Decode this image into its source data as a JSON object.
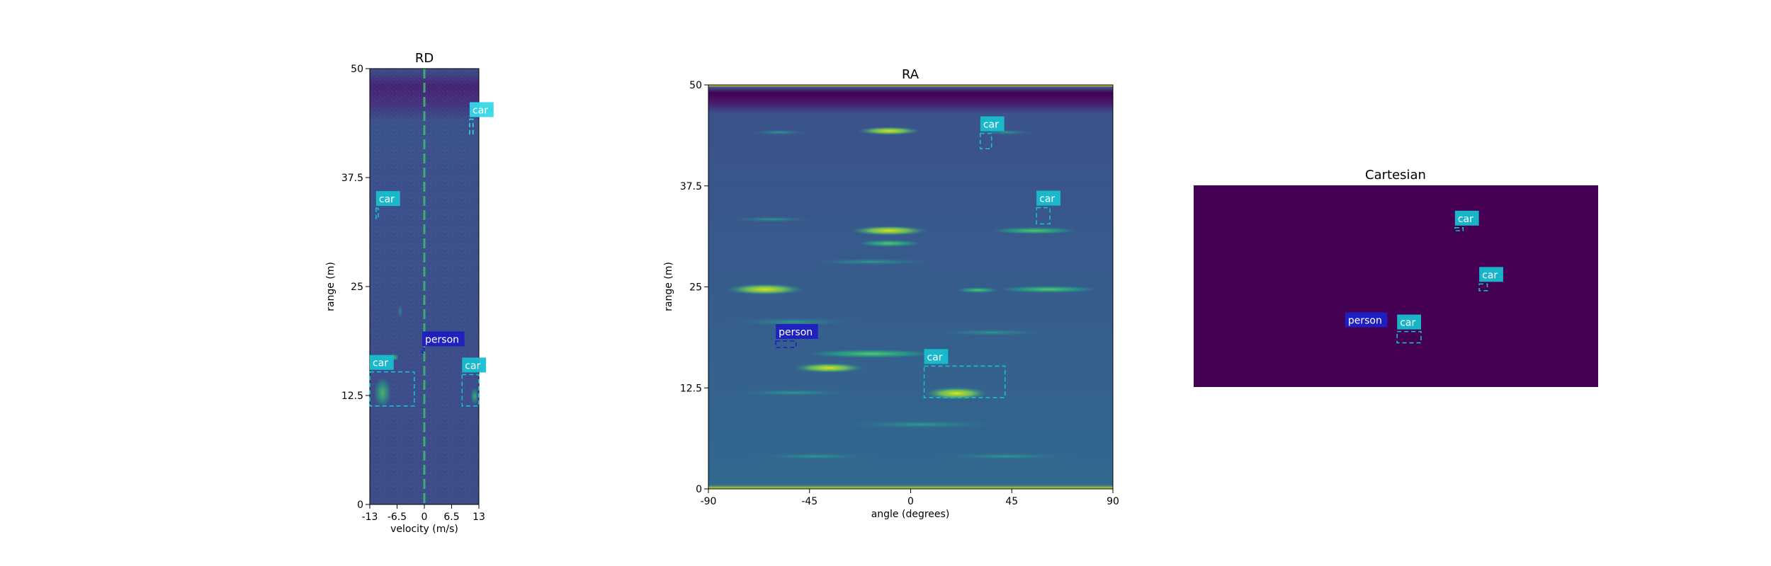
{
  "chart_data": [
    {
      "id": "rd",
      "type": "heatmap",
      "title": "RD",
      "xlabel": "velocity (m/s)",
      "ylabel": "range (m)",
      "xlim": [
        -13,
        13
      ],
      "ylim": [
        0,
        50
      ],
      "xticks": [
        -13,
        -6.5,
        0,
        6.5,
        13
      ],
      "xtick_labels": [
        "-13",
        "-6.5",
        "0",
        "6.5",
        "13"
      ],
      "yticks": [
        0,
        12.5,
        25,
        37.5,
        50
      ],
      "ytick_labels": [
        "0",
        "12.5",
        "25",
        "37.5",
        "50"
      ],
      "colormap": "viridis",
      "grid": false,
      "detections": [
        {
          "label": "car",
          "color": "#17becf",
          "x0": -11.5,
          "x1": -11.0,
          "y0": 32.8,
          "y1": 34.0
        },
        {
          "label": "car",
          "color": "#35d7e8",
          "x0": 10.8,
          "x1": 11.6,
          "y0": 42.5,
          "y1": 44.2
        },
        {
          "label": "person",
          "color": "#1f1fbf",
          "x0": -0.5,
          "x1": -0.1,
          "y0": 17.4,
          "y1": 17.9
        },
        {
          "label": "car",
          "color": "#17becf",
          "x0": -13.0,
          "x1": -2.4,
          "y0": 11.3,
          "y1": 15.2
        },
        {
          "label": "car",
          "color": "#17becf",
          "x0": 9.0,
          "x1": 13.0,
          "y0": 11.3,
          "y1": 14.9
        }
      ]
    },
    {
      "id": "ra",
      "type": "heatmap",
      "title": "RA",
      "xlabel": "angle (degrees)",
      "ylabel": "range (m)",
      "xlim": [
        -90,
        90
      ],
      "ylim": [
        0,
        50
      ],
      "xticks": [
        -90,
        -45,
        0,
        45,
        90
      ],
      "xtick_labels": [
        "-90",
        "-45",
        "0",
        "45",
        "90"
      ],
      "yticks": [
        0,
        12.5,
        25,
        37.5,
        50
      ],
      "ytick_labels": [
        "0",
        "12.5",
        "25",
        "37.5",
        "50"
      ],
      "colormap": "viridis",
      "grid": false,
      "detections": [
        {
          "label": "car",
          "color": "#17becf",
          "x0": 31.0,
          "x1": 36.0,
          "y0": 42.1,
          "y1": 44.0
        },
        {
          "label": "car",
          "color": "#17becf",
          "x0": 56.0,
          "x1": 62.0,
          "y0": 32.8,
          "y1": 34.8
        },
        {
          "label": "person",
          "color": "#1f1fbf",
          "x0": -60.0,
          "x1": -51.0,
          "y0": 17.5,
          "y1": 18.3
        },
        {
          "label": "car",
          "color": "#17becf",
          "x0": 6.0,
          "x1": 42.0,
          "y0": 11.3,
          "y1": 15.2
        }
      ]
    },
    {
      "id": "cartesian",
      "type": "heatmap",
      "title": "Cartesian",
      "background_color": "#440154",
      "axes": "off",
      "detections": [
        {
          "label": "car",
          "color": "#17becf",
          "x0": 0.646,
          "x1": 0.666,
          "y0": 0.79,
          "y1": 0.775
        },
        {
          "label": "car",
          "color": "#17becf",
          "x0": 0.706,
          "x1": 0.726,
          "y0": 0.511,
          "y1": 0.478
        },
        {
          "label": "person",
          "color": "#1f1fbf",
          "x0": 0.385,
          "x1": 0.395,
          "y0": 0.3,
          "y1": 0.3
        },
        {
          "label": "car",
          "color": "#17becf",
          "x0": 0.503,
          "x1": 0.562,
          "y0": 0.275,
          "y1": 0.219
        }
      ]
    }
  ]
}
